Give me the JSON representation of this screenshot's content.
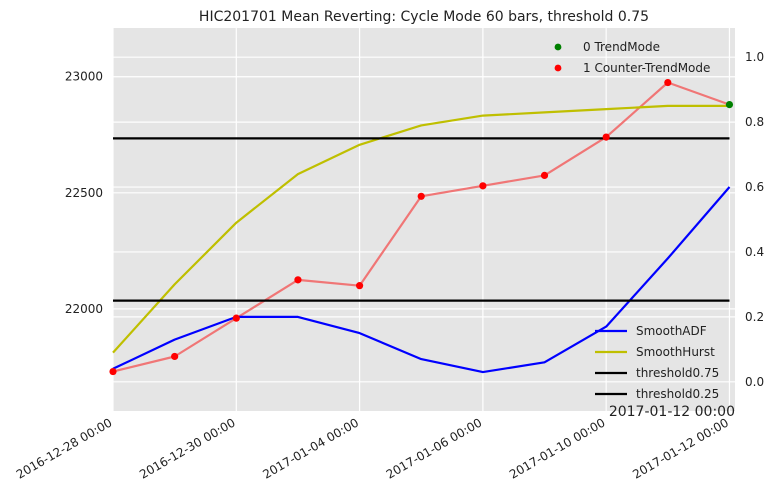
{
  "chart_data": {
    "type": "line",
    "title": "HIC201701 Mean Reverting: Cycle Mode 60 bars, threshold 0.75",
    "x_tick_labels": [
      "2016-12-28 00:00",
      "2016-12-30 00:00",
      "2017-01-04 00:00",
      "2017-01-06 00:00",
      "2017-01-10 00:00",
      "2017-01-12 00:00"
    ],
    "annotation": "2017-01-12 00:00",
    "y_left": {
      "ylim": [
        21560,
        23210
      ],
      "ticks": [
        22000,
        22500,
        23000
      ]
    },
    "y_right": {
      "ylim": [
        -0.09,
        1.09
      ],
      "ticks": [
        0.0,
        0.2,
        0.4,
        0.6,
        0.8,
        1.0
      ],
      "tick_labels": [
        "0.0",
        "0.2",
        "0.4",
        "0.6",
        "0.8",
        "1.0"
      ]
    },
    "grid": true,
    "legend_top": {
      "placement": "top-right",
      "entries": [
        "0 TrendMode",
        "1 Counter-TrendMode"
      ]
    },
    "legend_bottom": {
      "placement": "bottom-right",
      "entries": [
        "SmoothADF",
        "SmoothHurst",
        "threshold0.75",
        "threshold0.25"
      ]
    },
    "colors": {
      "price_line": "#f07676",
      "trend": "#008000",
      "counter_trend": "#ff0000",
      "adf": "#0000ff",
      "hurst": "#bfbf00",
      "threshold": "#000000",
      "background": "#e5e5e5",
      "grid": "#ffffff"
    },
    "x_index": [
      0,
      1,
      2,
      3,
      4,
      5,
      6,
      7,
      8,
      9,
      10
    ],
    "price": [
      21730,
      21795,
      21960,
      22125,
      22100,
      22485,
      22530,
      22575,
      22740,
      22975,
      22880
    ],
    "mode": [
      1,
      1,
      1,
      1,
      1,
      1,
      1,
      1,
      1,
      1,
      0
    ],
    "series": [
      {
        "name": "SmoothADF",
        "axis": "right",
        "values": [
          0.04,
          0.13,
          0.2,
          0.2,
          0.15,
          0.07,
          0.03,
          0.06,
          0.17,
          0.38,
          0.6
        ]
      },
      {
        "name": "SmoothHurst",
        "axis": "right",
        "values": [
          0.09,
          0.3,
          0.49,
          0.64,
          0.73,
          0.79,
          0.82,
          0.83,
          0.84,
          0.85,
          0.85
        ]
      },
      {
        "name": "threshold0.75",
        "axis": "right",
        "values": [
          0.75,
          0.75,
          0.75,
          0.75,
          0.75,
          0.75,
          0.75,
          0.75,
          0.75,
          0.75,
          0.75
        ]
      },
      {
        "name": "threshold0.25",
        "axis": "right",
        "values": [
          0.25,
          0.25,
          0.25,
          0.25,
          0.25,
          0.25,
          0.25,
          0.25,
          0.25,
          0.25,
          0.25
        ]
      }
    ]
  }
}
